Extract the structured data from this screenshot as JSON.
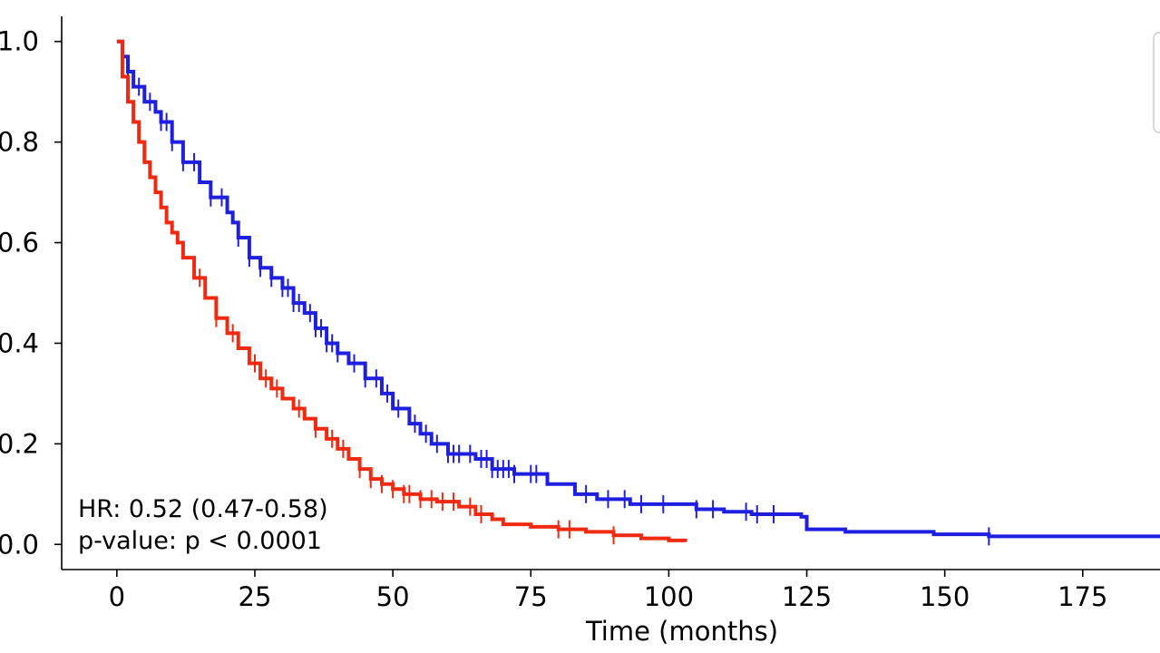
{
  "chart_data": {
    "type": "line",
    "subtype": "kaplan-meier",
    "title": "",
    "xlabel": "Time (months)",
    "ylabel": "",
    "xlim": [
      -10,
      189
    ],
    "ylim": [
      -0.05,
      1.05
    ],
    "x_ticks": [
      0,
      25,
      50,
      75,
      100,
      125,
      150,
      175
    ],
    "y_ticks": [
      0.0,
      0.2,
      0.4,
      0.6,
      0.8,
      1.0
    ],
    "y_tick_labels": [
      "0.0",
      "0.2",
      "0.4",
      "0.6",
      "0.8",
      "1.0"
    ],
    "grid": false,
    "legend": {
      "location": "top-right",
      "entries": []
    },
    "annotations": {
      "hr": "HR: 0.52 (0.47-0.58)",
      "pvalue": "p-value: p < 0.0001"
    },
    "series": [
      {
        "name": "blue",
        "color": "#1f1fe0",
        "points": [
          [
            0,
            1.0
          ],
          [
            1,
            0.97
          ],
          [
            2,
            0.94
          ],
          [
            3,
            0.91
          ],
          [
            5,
            0.88
          ],
          [
            7,
            0.86
          ],
          [
            8,
            0.84
          ],
          [
            10,
            0.8
          ],
          [
            12,
            0.76
          ],
          [
            15,
            0.72
          ],
          [
            17,
            0.69
          ],
          [
            20,
            0.66
          ],
          [
            21,
            0.64
          ],
          [
            22,
            0.61
          ],
          [
            24,
            0.57
          ],
          [
            26,
            0.55
          ],
          [
            28,
            0.53
          ],
          [
            30,
            0.51
          ],
          [
            32,
            0.48
          ],
          [
            34,
            0.46
          ],
          [
            36,
            0.43
          ],
          [
            38,
            0.4
          ],
          [
            40,
            0.38
          ],
          [
            42,
            0.36
          ],
          [
            45,
            0.33
          ],
          [
            48,
            0.3
          ],
          [
            50,
            0.27
          ],
          [
            53,
            0.24
          ],
          [
            55,
            0.22
          ],
          [
            57,
            0.2
          ],
          [
            60,
            0.18
          ],
          [
            65,
            0.17
          ],
          [
            68,
            0.15
          ],
          [
            72,
            0.14
          ],
          [
            78,
            0.12
          ],
          [
            83,
            0.1
          ],
          [
            87,
            0.09
          ],
          [
            93,
            0.08
          ],
          [
            100,
            0.08
          ],
          [
            105,
            0.07
          ],
          [
            110,
            0.065
          ],
          [
            115,
            0.06
          ],
          [
            124,
            0.055
          ],
          [
            125,
            0.03
          ],
          [
            132,
            0.025
          ],
          [
            148,
            0.02
          ],
          [
            158,
            0.016
          ],
          [
            189,
            0.016
          ]
        ],
        "censor_times": [
          2,
          4,
          6,
          8,
          9,
          10,
          12,
          14,
          17,
          19,
          22,
          24,
          26,
          28,
          30,
          31,
          32,
          33,
          35,
          36,
          37,
          38,
          39,
          40,
          43,
          45,
          47,
          49,
          51,
          54,
          56,
          58,
          60,
          61,
          62,
          64,
          66,
          67,
          68,
          69,
          70,
          71,
          72,
          75,
          76,
          85,
          89,
          92,
          95,
          99,
          105,
          108,
          114,
          116,
          119,
          158
        ]
      },
      {
        "name": "red",
        "color": "#f02a10",
        "points": [
          [
            0,
            1.0
          ],
          [
            1,
            0.93
          ],
          [
            2,
            0.88
          ],
          [
            3,
            0.84
          ],
          [
            4,
            0.8
          ],
          [
            5,
            0.76
          ],
          [
            6,
            0.73
          ],
          [
            7,
            0.7
          ],
          [
            8,
            0.67
          ],
          [
            9,
            0.64
          ],
          [
            10,
            0.62
          ],
          [
            11,
            0.6
          ],
          [
            12,
            0.57
          ],
          [
            14,
            0.53
          ],
          [
            16,
            0.49
          ],
          [
            18,
            0.45
          ],
          [
            20,
            0.42
          ],
          [
            22,
            0.39
          ],
          [
            24,
            0.36
          ],
          [
            26,
            0.33
          ],
          [
            28,
            0.31
          ],
          [
            30,
            0.29
          ],
          [
            32,
            0.27
          ],
          [
            34,
            0.25
          ],
          [
            36,
            0.23
          ],
          [
            38,
            0.21
          ],
          [
            40,
            0.19
          ],
          [
            42,
            0.17
          ],
          [
            44,
            0.15
          ],
          [
            46,
            0.13
          ],
          [
            48,
            0.12
          ],
          [
            50,
            0.11
          ],
          [
            52,
            0.1
          ],
          [
            55,
            0.09
          ],
          [
            58,
            0.085
          ],
          [
            62,
            0.075
          ],
          [
            65,
            0.06
          ],
          [
            68,
            0.05
          ],
          [
            70,
            0.04
          ],
          [
            75,
            0.035
          ],
          [
            80,
            0.03
          ],
          [
            85,
            0.025
          ],
          [
            90,
            0.018
          ],
          [
            95,
            0.012
          ],
          [
            100,
            0.008
          ],
          [
            103,
            0.005
          ]
        ],
        "censor_times": [
          15,
          18,
          21,
          25,
          27,
          29,
          33,
          36,
          39,
          41,
          44,
          46,
          48,
          50,
          52,
          53,
          55,
          57,
          59,
          61,
          64,
          66,
          80,
          82,
          90
        ]
      }
    ]
  }
}
